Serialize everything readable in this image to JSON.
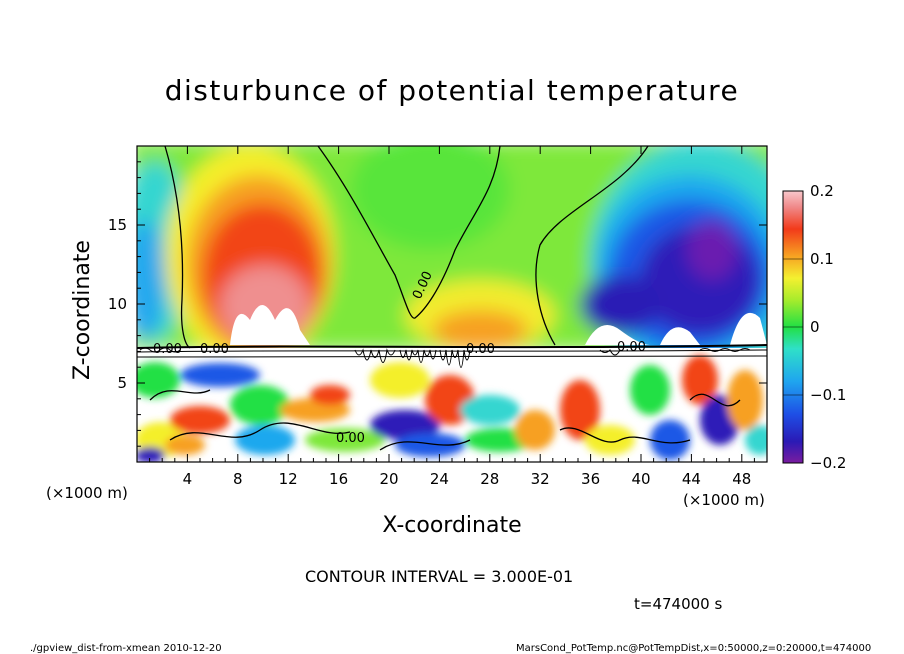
{
  "chart_data": {
    "type": "heatmap",
    "title": "disturbunce of potential temperature",
    "xlabel": "X-coordinate",
    "ylabel": "Z-coordinate",
    "x_unit_left": "(×1000 m)",
    "x_unit_right": "(×1000 m)",
    "xlim": [
      0,
      50
    ],
    "ylim": [
      0,
      20
    ],
    "xticks": [
      4,
      8,
      12,
      16,
      20,
      24,
      28,
      32,
      36,
      40,
      44,
      48
    ],
    "xtick_labels": [
      "4",
      "8",
      "12",
      "16",
      "20",
      "24",
      "28",
      "32",
      "36",
      "40",
      "44",
      "48"
    ],
    "yticks": [
      5,
      10,
      15
    ],
    "ytick_labels": [
      "5",
      "10",
      "15"
    ],
    "colorbar": {
      "range": [
        -0.2,
        0.2
      ],
      "ticks": [
        -0.2,
        -0.1,
        0,
        0.1,
        0.2
      ],
      "tick_labels": [
        "−0.2",
        "−0.1",
        "0",
        "0.1",
        "0.2"
      ]
    },
    "contour_labels": [
      "0.00",
      "0.00",
      "0.00",
      "0.00",
      "0.00",
      "0.00"
    ],
    "contour_interval_text": "CONTOUR INTERVAL = 3.000E-01",
    "time_text": "t=474000 s",
    "footer_left": "./gpview_dist-from-xmean  2010-12-20",
    "footer_right": "MarsCond_PotTemp.nc@PotTempDist,x=0:50000,z=0:20000,t=474000",
    "upper_field": {
      "description_points": [
        {
          "x": 10.5,
          "z": 11.5,
          "value": 0.2
        },
        {
          "x": 27,
          "z": 9,
          "value": 0.11
        },
        {
          "x": 21,
          "z": 16,
          "value": 0.02
        },
        {
          "x": 45,
          "z": 12.5,
          "value": -0.2
        },
        {
          "x": 38.5,
          "z": 11,
          "value": -0.18
        },
        {
          "x": 1,
          "z": 13,
          "value": -0.06
        }
      ]
    }
  }
}
